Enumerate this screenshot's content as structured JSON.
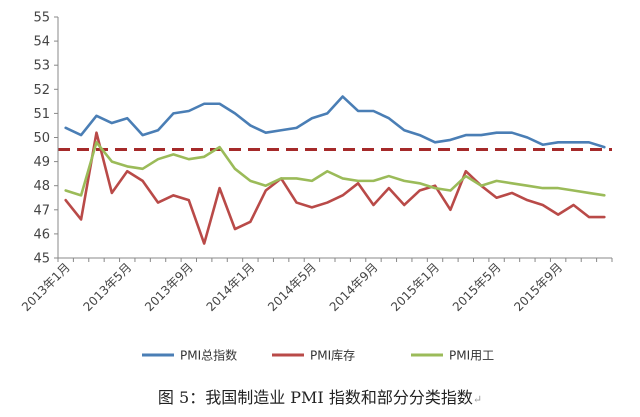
{
  "chart_data": {
    "type": "line",
    "x": [
      "2013年1月",
      "2013年2月",
      "2013年3月",
      "2013年4月",
      "2013年5月",
      "2013年6月",
      "2013年7月",
      "2013年8月",
      "2013年9月",
      "2013年10月",
      "2013年11月",
      "2013年12月",
      "2014年1月",
      "2014年2月",
      "2014年3月",
      "2014年4月",
      "2014年5月",
      "2014年6月",
      "2014年7月",
      "2014年8月",
      "2014年9月",
      "2014年10月",
      "2014年11月",
      "2014年12月",
      "2015年1月",
      "2015年2月",
      "2015年3月",
      "2015年4月",
      "2015年5月",
      "2015年6月",
      "2015年7月",
      "2015年8月",
      "2015年9月",
      "2015年10月",
      "2015年11月",
      "2015年12月"
    ],
    "tick_labels": [
      "2013年1月",
      "2013年5月",
      "2013年9月",
      "2014年1月",
      "2014年5月",
      "2014年9月",
      "2015年1月",
      "2015年5月",
      "2015年9月"
    ],
    "tick_indices": [
      0,
      4,
      8,
      12,
      16,
      20,
      24,
      28,
      32
    ],
    "yticks": [
      45,
      46,
      47,
      48,
      49,
      50,
      51,
      52,
      53,
      54,
      55
    ],
    "ylim": [
      45,
      55
    ],
    "reference_line": 49.5,
    "series": [
      {
        "name": "PMI总指数",
        "color": "#4a7eb5",
        "values": [
          50.4,
          50.1,
          50.9,
          50.6,
          50.8,
          50.1,
          50.3,
          51.0,
          51.1,
          51.4,
          51.4,
          51.0,
          50.5,
          50.2,
          50.3,
          50.4,
          50.8,
          51.0,
          51.7,
          51.1,
          51.1,
          50.8,
          50.3,
          50.1,
          49.8,
          49.9,
          50.1,
          50.1,
          50.2,
          50.2,
          50.0,
          49.7,
          49.8,
          49.8,
          49.8,
          49.6
        ]
      },
      {
        "name": "PMI库存",
        "color": "#b94a48",
        "values": [
          47.4,
          46.6,
          50.2,
          47.7,
          48.6,
          48.2,
          47.3,
          47.6,
          47.4,
          45.6,
          47.9,
          46.2,
          46.5,
          47.8,
          48.3,
          47.3,
          47.1,
          47.3,
          47.6,
          48.1,
          47.2,
          47.9,
          47.2,
          47.8,
          48.0,
          47.0,
          48.6,
          48.0,
          47.5,
          47.7,
          47.4,
          47.2,
          46.8,
          47.2,
          46.7,
          46.7
        ]
      },
      {
        "name": "PMI用工",
        "color": "#9bbb59",
        "values": [
          47.8,
          47.6,
          49.8,
          49.0,
          48.8,
          48.7,
          49.1,
          49.3,
          49.1,
          49.2,
          49.6,
          48.7,
          48.2,
          48.0,
          48.3,
          48.3,
          48.2,
          48.6,
          48.3,
          48.2,
          48.2,
          48.4,
          48.2,
          48.1,
          47.9,
          47.8,
          48.4,
          48.0,
          48.2,
          48.1,
          48.0,
          47.9,
          47.9,
          47.8,
          47.7,
          47.6
        ]
      }
    ],
    "legend_position": "bottom"
  },
  "caption": "图 5：我国制造业 PMI 指数和部分分类指数",
  "caption_mark": "↵"
}
